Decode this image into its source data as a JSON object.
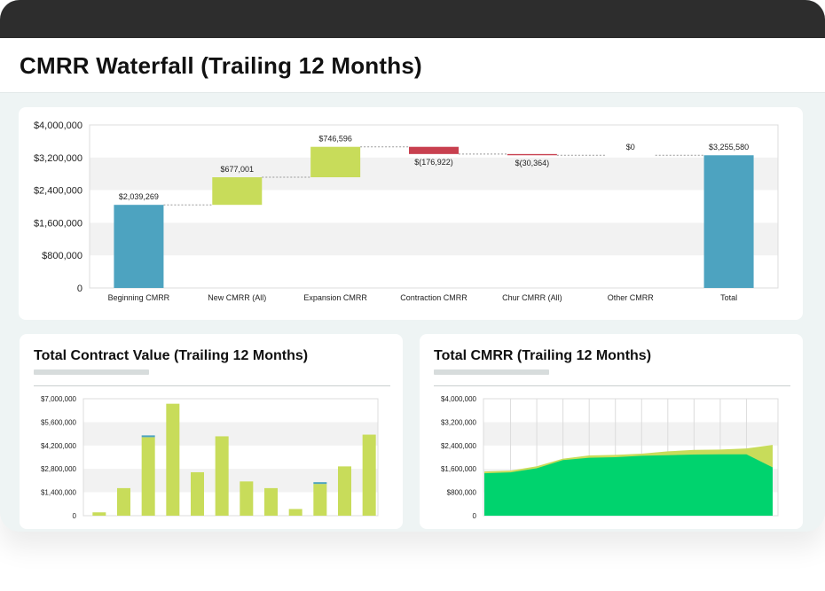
{
  "page": {
    "title": "CMRR Waterfall (Trailing 12 Months)"
  },
  "chart_data": [
    {
      "type": "waterfall",
      "categories": [
        "Beginning CMRR",
        "New CMRR (All)",
        "Expansion CMRR",
        "Contraction CMRR",
        "Chur CMRR (All)",
        "Other CMRR",
        "Total"
      ],
      "values": [
        2039269,
        677001,
        746596,
        -176922,
        -30364,
        0,
        3255580
      ],
      "labels": [
        "$2,039,269",
        "$677,001",
        "$746,596",
        "$(176,922)",
        "$(30,364)",
        "$0",
        "$3,255,580"
      ],
      "yticks": [
        "$4,000,000",
        "$3,200,000",
        "$2,400,000",
        "$1,600,000",
        "$800,000",
        "0"
      ],
      "ylim": [
        0,
        4000000
      ],
      "colors": {
        "total": "#4da3c0",
        "increase": "#c8dc5a",
        "decrease": "#c8404f"
      }
    },
    {
      "type": "bar",
      "title": "Total Contract Value (Trailing 12 Months)",
      "yticks": [
        "$7,000,000",
        "$5,600,000",
        "$4,200,000",
        "$2,800,000",
        "$1,400,000",
        "0"
      ],
      "ylim": [
        0,
        7000000
      ],
      "series": [
        {
          "name": "",
          "color": "#c8dc5a",
          "values": [
            200000,
            1650000,
            4700000,
            6700000,
            2600000,
            4750000,
            2050000,
            1650000,
            400000,
            1900000,
            2950000,
            4850000
          ]
        },
        {
          "name": "",
          "color": "#4da3c0",
          "values": [
            0,
            0,
            100000,
            0,
            0,
            0,
            0,
            0,
            0,
            100000,
            0,
            0
          ]
        }
      ]
    },
    {
      "type": "area",
      "title": "Total CMRR (Trailing 12 Months)",
      "yticks": [
        "$4,000,000",
        "$3,200,000",
        "$2,400,000",
        "$1,600,000",
        "$800,000",
        "0"
      ],
      "ylim": [
        0,
        4000000
      ],
      "series": [
        {
          "name": "",
          "color": "#00d36e",
          "values": [
            1450000,
            1480000,
            1620000,
            1900000,
            1980000,
            2000000,
            2050000,
            2070000,
            2090000,
            2100000,
            2100000,
            1650000
          ]
        },
        {
          "name": "",
          "color": "#c8dc5a",
          "values": [
            1510000,
            1540000,
            1690000,
            1950000,
            2060000,
            2080000,
            2120000,
            2200000,
            2250000,
            2260000,
            2300000,
            2420000
          ]
        }
      ]
    }
  ]
}
